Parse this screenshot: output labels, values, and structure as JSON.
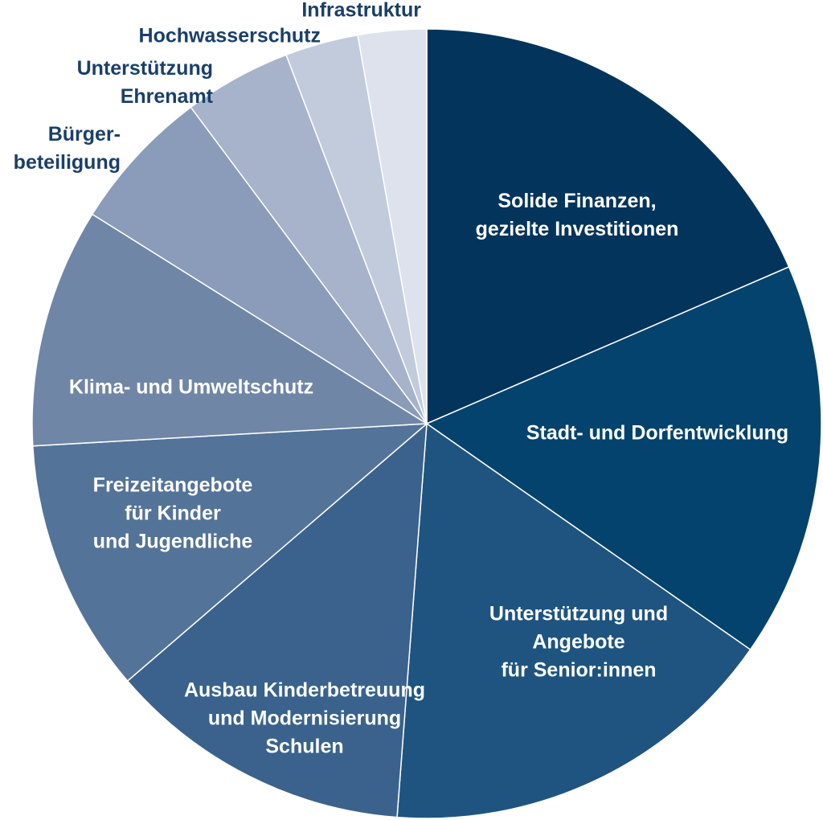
{
  "chart_data": {
    "type": "pie",
    "start_angle_deg": 0,
    "direction": "clockwise",
    "slices": [
      {
        "label": "Solide Finanzen, gezielte Investitionen",
        "lines": [
          "Solide Finanzen,",
          "gezielte Investitionen"
        ],
        "value": 18.5,
        "color": "#02345c",
        "label_color": "#ffffff",
        "label_placement": "inside"
      },
      {
        "label": "Stadt- und Dorfentwicklung",
        "lines": [
          "Stadt- und Dorfentwicklung"
        ],
        "value": 16.2,
        "color": "#03436d",
        "label_color": "#ffffff",
        "label_placement": "inside"
      },
      {
        "label": "Unterstützung und Angebote für Senior:innen",
        "lines": [
          "Unterstützung und",
          "Angebote",
          "für Senior:innen"
        ],
        "value": 16.5,
        "color": "#1f5480",
        "label_color": "#ffffff",
        "label_placement": "inside"
      },
      {
        "label": "Ausbau Kinderbetreuung und Modernisierung Schulen",
        "lines": [
          "Ausbau Kinderbetreuung",
          "und Modernisierung",
          "Schulen"
        ],
        "value": 12.5,
        "color": "#3a628c",
        "label_color": "#ffffff",
        "label_placement": "inside"
      },
      {
        "label": "Freizeitangebote für Kinder und Jugendliche",
        "lines": [
          "Freizeitangebote",
          "für Kinder",
          "und Jugendliche"
        ],
        "value": 10.4,
        "color": "#547399",
        "label_color": "#ffffff",
        "label_placement": "inside"
      },
      {
        "label": "Klima- und Umweltschutz",
        "lines": [
          "Klima- und Umweltschutz"
        ],
        "value": 9.8,
        "color": "#6f86a7",
        "label_color": "#ffffff",
        "label_placement": "inside"
      },
      {
        "label": "Bürgerbeteiligung",
        "lines": [
          "Bürger-",
          "beteiligung"
        ],
        "value": 5.9,
        "color": "#8a9cb9",
        "label_color": "#1a3f6b",
        "label_placement": "outside"
      },
      {
        "label": "Unterstützung Ehrenamt",
        "lines": [
          "Unterstützung",
          "Ehrenamt"
        ],
        "value": 4.4,
        "color": "#a6b3ca",
        "label_color": "#1a3f6b",
        "label_placement": "outside"
      },
      {
        "label": "Hochwasserschutz",
        "lines": [
          "Hochwasserschutz"
        ],
        "value": 3.0,
        "color": "#c2cbdb",
        "label_color": "#1a3f6b",
        "label_placement": "outside"
      },
      {
        "label": "Infrastruktur",
        "lines": [
          "Infrastruktur"
        ],
        "value": 2.8,
        "color": "#dde2ec",
        "label_color": "#1a3f6b",
        "label_placement": "outside"
      }
    ]
  }
}
